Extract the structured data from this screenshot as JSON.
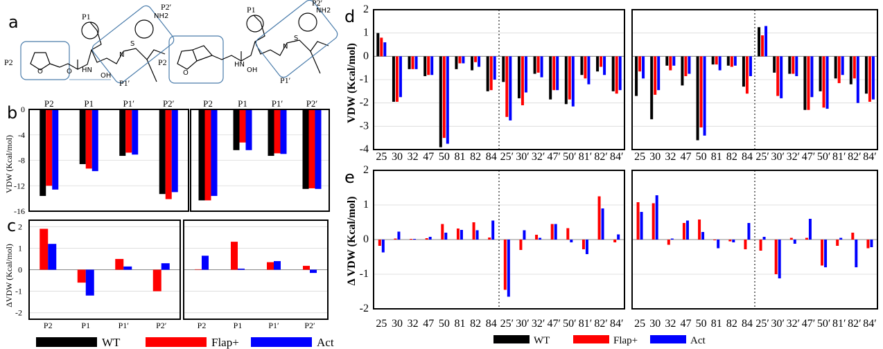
{
  "panel_labels": [
    "a",
    "b",
    "c",
    "d",
    "e"
  ],
  "structures": {
    "left": {
      "site_labels": [
        "P2",
        "P1",
        "P2′",
        "P1′"
      ]
    },
    "right": {
      "site_labels": [
        "P2",
        "P1",
        "P2′",
        "P1′"
      ]
    },
    "atoms": {
      "o": "O",
      "n": "N",
      "nh": "HN",
      "s": "S",
      "oh": "OH",
      "nh2": "NH2"
    }
  },
  "colors": {
    "WT": "#000000",
    "Flap+": "#ff0000",
    "Act": "#0000ff",
    "grid": "#d9d9d9",
    "divider": "#555555"
  },
  "legend_bc": [
    {
      "label": "WT",
      "color": "#000000"
    },
    {
      "label": "Flap+",
      "color": "#ff0000"
    },
    {
      "label": "Act",
      "color": "#0000ff"
    }
  ],
  "legend_de": [
    {
      "label": "WT",
      "color": "#000000"
    },
    {
      "label": "Flap+",
      "color": "#ff0000"
    },
    {
      "label": "Act",
      "color": "#0000ff"
    }
  ],
  "axis_labels": {
    "b": "VDW (Kcal/mol)",
    "c": "ΔVDW (Kcal/mol)",
    "d": "VDW (Kcal/mol)",
    "e": "Δ VDW (Kcal/mol)"
  },
  "chart_data": [
    {
      "id": "b-left",
      "type": "bar",
      "categories": [
        "P2",
        "P1",
        "P1′",
        "P2′"
      ],
      "series": [
        {
          "name": "WT",
          "values": [
            -13.6,
            -8.6,
            -7.3,
            -13.3
          ]
        },
        {
          "name": "Flap+",
          "values": [
            -12.0,
            -9.3,
            -6.8,
            -14.1
          ]
        },
        {
          "name": "Act",
          "values": [
            -12.6,
            -9.7,
            -7.1,
            -13.0
          ]
        }
      ],
      "ylim": [
        -16,
        0
      ],
      "yticks": [
        0,
        -4,
        -8,
        -12,
        -16
      ],
      "ytick_labels": [
        "0",
        "-4",
        "-8",
        "-12",
        "-16"
      ]
    },
    {
      "id": "b-right",
      "type": "bar",
      "categories": [
        "P2",
        "P1",
        "P1′",
        "P2′"
      ],
      "series": [
        {
          "name": "WT",
          "values": [
            -14.3,
            -6.4,
            -7.3,
            -12.5
          ]
        },
        {
          "name": "Flap+",
          "values": [
            -14.3,
            -5.2,
            -6.9,
            -12.4
          ]
        },
        {
          "name": "Act",
          "values": [
            -13.6,
            -6.4,
            -7.0,
            -12.5
          ]
        }
      ],
      "ylim": [
        -16,
        0
      ],
      "yticks": [
        0,
        -4,
        -8,
        -12,
        -16
      ],
      "ytick_labels": []
    },
    {
      "id": "c-left",
      "type": "bar",
      "categories": [
        "P2",
        "P1",
        "P1′",
        "P2′"
      ],
      "series": [
        {
          "name": "Flap+",
          "values": [
            1.9,
            -0.6,
            0.5,
            -1.0
          ]
        },
        {
          "name": "Act",
          "values": [
            1.2,
            -1.2,
            0.15,
            0.3
          ]
        }
      ],
      "ylim": [
        -2.3,
        2.3
      ],
      "yticks": [
        2,
        1,
        0,
        -1,
        -2
      ],
      "ytick_labels": [
        "2",
        "1",
        "0",
        "-1",
        "-2"
      ]
    },
    {
      "id": "c-right",
      "type": "bar",
      "categories": [
        "P2",
        "P1",
        "P1′",
        "P2′"
      ],
      "series": [
        {
          "name": "Flap+",
          "values": [
            0.02,
            1.3,
            0.35,
            0.18
          ]
        },
        {
          "name": "Act",
          "values": [
            0.65,
            0.05,
            0.4,
            -0.15
          ]
        }
      ],
      "ylim": [
        -2.3,
        2.3
      ],
      "yticks": [
        2,
        1,
        0,
        -1,
        -2
      ],
      "ytick_labels": []
    },
    {
      "id": "d-left",
      "type": "bar",
      "categories": [
        "25",
        "30",
        "32",
        "47",
        "50",
        "81",
        "82",
        "84",
        "25′",
        "30′",
        "32′",
        "47′",
        "50′",
        "81′",
        "82′",
        "84′"
      ],
      "series": [
        {
          "name": "WT",
          "values": [
            1.0,
            -1.95,
            -0.55,
            -0.85,
            -3.9,
            -0.55,
            -0.6,
            -1.5,
            -1.1,
            -1.8,
            -0.75,
            -1.85,
            -2.05,
            -0.8,
            -0.65,
            -1.5
          ]
        },
        {
          "name": "Flap+",
          "values": [
            0.8,
            -1.95,
            -0.55,
            -0.8,
            -3.5,
            -0.3,
            -0.25,
            -1.45,
            -2.6,
            -2.1,
            -0.7,
            -1.45,
            -1.85,
            -0.95,
            -0.45,
            -1.6
          ]
        },
        {
          "name": "Act",
          "values": [
            0.6,
            -1.75,
            -0.55,
            -0.8,
            -3.75,
            -0.3,
            -0.45,
            -1.0,
            -2.75,
            -1.55,
            -0.9,
            -1.45,
            -2.15,
            -1.2,
            -0.8,
            -1.45
          ]
        }
      ],
      "ylim": [
        -4,
        2
      ],
      "yticks": [
        2,
        1,
        0,
        -1,
        -2,
        -3,
        -4
      ],
      "ytick_labels": [
        "2",
        "1",
        "0",
        "-1",
        "-2",
        "-3",
        "-4"
      ]
    },
    {
      "id": "d-right",
      "type": "bar",
      "categories": [
        "25",
        "30",
        "32",
        "47",
        "50",
        "81",
        "82",
        "84",
        "25′",
        "30′",
        "32′",
        "47′",
        "50′",
        "81′",
        "82′",
        "84′"
      ],
      "series": [
        {
          "name": "WT",
          "values": [
            -1.7,
            -2.7,
            -0.4,
            -1.25,
            -3.6,
            -0.35,
            -0.4,
            -1.3,
            1.25,
            -0.7,
            -0.75,
            -2.3,
            -1.5,
            -0.95,
            -1.2,
            -1.6
          ]
        },
        {
          "name": "Flap+",
          "values": [
            -0.65,
            -1.65,
            -0.6,
            -0.85,
            -3.05,
            -0.35,
            -0.45,
            -1.6,
            0.9,
            -1.7,
            -0.75,
            -2.3,
            -2.2,
            -1.15,
            -0.95,
            -1.95
          ]
        },
        {
          "name": "Act",
          "values": [
            -0.95,
            -1.45,
            -0.4,
            -0.75,
            -3.4,
            -0.6,
            -0.4,
            -0.85,
            1.3,
            -1.8,
            -0.85,
            -1.75,
            -2.25,
            -0.8,
            -2.0,
            -1.85
          ]
        }
      ],
      "ylim": [
        -4,
        2
      ],
      "yticks": [
        2,
        1,
        0,
        -1,
        -2,
        -3,
        -4
      ],
      "ytick_labels": []
    },
    {
      "id": "e-left",
      "type": "bar",
      "categories": [
        "25",
        "30",
        "32",
        "47",
        "50",
        "81",
        "82",
        "84",
        "25′",
        "30′",
        "32′",
        "47′",
        "50′",
        "81′",
        "82′",
        "84′"
      ],
      "series": [
        {
          "name": "Flap+",
          "values": [
            -0.18,
            0.03,
            0.02,
            0.04,
            0.45,
            0.32,
            0.5,
            0.06,
            -1.45,
            -0.3,
            0.14,
            0.45,
            0.33,
            -0.28,
            1.25,
            -0.08
          ]
        },
        {
          "name": "Act",
          "values": [
            -0.37,
            0.23,
            0.02,
            0.08,
            0.2,
            0.28,
            0.27,
            0.55,
            -1.65,
            0.27,
            0.05,
            0.45,
            -0.08,
            -0.42,
            0.9,
            0.15
          ]
        }
      ],
      "ylim": [
        -2,
        2
      ],
      "yticks": [
        2,
        1,
        0,
        -1,
        -2
      ],
      "ytick_labels": [
        "2",
        "1",
        "0",
        "-1",
        "-2"
      ]
    },
    {
      "id": "e-right",
      "type": "bar",
      "categories": [
        "25",
        "30",
        "32",
        "47",
        "50",
        "81",
        "82",
        "84",
        "25′",
        "30′",
        "32′",
        "47′",
        "50′",
        "81′",
        "82′",
        "84′"
      ],
      "series": [
        {
          "name": "Flap+",
          "values": [
            1.08,
            1.05,
            -0.15,
            0.48,
            0.58,
            -0.02,
            -0.05,
            -0.28,
            -0.32,
            -1.0,
            0.05,
            0.05,
            -0.75,
            -0.18,
            0.2,
            -0.25
          ]
        },
        {
          "name": "Act",
          "values": [
            0.8,
            1.28,
            0.03,
            0.55,
            0.22,
            -0.25,
            -0.08,
            0.48,
            0.08,
            -1.12,
            -0.12,
            0.6,
            -0.8,
            0.05,
            -0.8,
            -0.22
          ]
        }
      ],
      "ylim": [
        -2,
        2
      ],
      "yticks": [
        2,
        1,
        0,
        -1,
        -2
      ],
      "ytick_labels": []
    }
  ]
}
